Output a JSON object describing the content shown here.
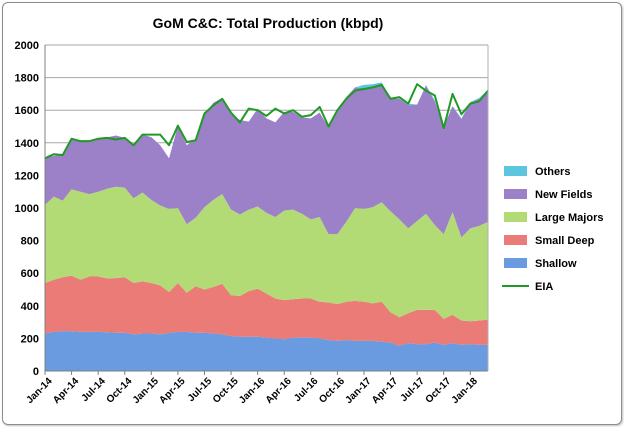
{
  "chart_data": {
    "type": "area",
    "title": "GoM C&C: Total Production (kbpd)",
    "ylim": [
      0,
      2000
    ],
    "yticks": [
      0,
      200,
      400,
      600,
      800,
      1000,
      1200,
      1400,
      1600,
      1800,
      2000
    ],
    "grid": "horizontal",
    "legend_position": "right",
    "stacked": true,
    "x": [
      "Jan-14",
      "Feb-14",
      "Mar-14",
      "Apr-14",
      "May-14",
      "Jun-14",
      "Jul-14",
      "Aug-14",
      "Sep-14",
      "Oct-14",
      "Nov-14",
      "Dec-14",
      "Jan-15",
      "Feb-15",
      "Mar-15",
      "Apr-15",
      "May-15",
      "Jun-15",
      "Jul-15",
      "Aug-15",
      "Sep-15",
      "Oct-15",
      "Nov-15",
      "Dec-15",
      "Jan-16",
      "Feb-16",
      "Mar-16",
      "Apr-16",
      "May-16",
      "Jun-16",
      "Jul-16",
      "Aug-16",
      "Sep-16",
      "Oct-16",
      "Nov-16",
      "Dec-16",
      "Jan-17",
      "Feb-17",
      "Mar-17",
      "Apr-17",
      "May-17",
      "Jun-17",
      "Jul-17",
      "Aug-17",
      "Sep-17",
      "Oct-17",
      "Nov-17",
      "Dec-17",
      "Jan-18",
      "Feb-18",
      "Mar-18"
    ],
    "x_tick_labels": [
      "Jan-14",
      "Apr-14",
      "Jul-14",
      "Oct-14",
      "Jan-15",
      "Apr-15",
      "Jul-15",
      "Oct-15",
      "Jan-16",
      "Apr-16",
      "Jul-16",
      "Oct-16",
      "Jan-17",
      "Apr-17",
      "Jul-17",
      "Oct-17",
      "Jan-18"
    ],
    "series": [
      {
        "name": "Shallow",
        "color": "#6a9be0",
        "values": [
          230,
          240,
          245,
          245,
          240,
          240,
          240,
          238,
          235,
          235,
          225,
          230,
          230,
          225,
          235,
          240,
          240,
          235,
          235,
          230,
          225,
          215,
          210,
          210,
          210,
          205,
          200,
          195,
          205,
          205,
          205,
          200,
          190,
          185,
          190,
          185,
          185,
          185,
          180,
          175,
          155,
          170,
          165,
          165,
          175,
          160,
          170,
          160,
          165,
          160,
          160
        ]
      },
      {
        "name": "Small Deep",
        "color": "#ea7b77",
        "values": [
          310,
          320,
          330,
          340,
          320,
          340,
          340,
          330,
          335,
          340,
          315,
          320,
          310,
          300,
          250,
          300,
          240,
          285,
          265,
          285,
          310,
          250,
          250,
          280,
          295,
          270,
          245,
          240,
          235,
          240,
          240,
          225,
          230,
          225,
          235,
          245,
          240,
          230,
          245,
          185,
          175,
          185,
          210,
          210,
          200,
          160,
          175,
          150,
          140,
          150,
          155
        ]
      },
      {
        "name": "Large Majors",
        "color": "#b3db75",
        "values": [
          480,
          510,
          470,
          530,
          540,
          505,
          520,
          550,
          560,
          550,
          520,
          545,
          510,
          490,
          510,
          460,
          420,
          420,
          505,
          535,
          550,
          525,
          500,
          500,
          505,
          495,
          500,
          550,
          550,
          520,
          485,
          520,
          420,
          430,
          490,
          570,
          570,
          590,
          610,
          620,
          600,
          520,
          545,
          590,
          520,
          520,
          630,
          510,
          570,
          580,
          600
        ]
      },
      {
        "name": "New Fields",
        "color": "#9c80c8",
        "values": [
          290,
          250,
          285,
          310,
          305,
          320,
          325,
          315,
          315,
          305,
          325,
          355,
          385,
          370,
          310,
          505,
          485,
          485,
          570,
          595,
          590,
          585,
          580,
          540,
          600,
          580,
          580,
          605,
          600,
          590,
          620,
          640,
          655,
          750,
          765,
          740,
          740,
          740,
          720,
          690,
          740,
          755,
          715,
          785,
          760,
          660,
          650,
          725,
          770,
          780,
          800
        ]
      },
      {
        "name": "Others",
        "color": "#5ec5df",
        "values": [
          0,
          0,
          0,
          0,
          0,
          0,
          0,
          0,
          0,
          0,
          0,
          0,
          0,
          0,
          0,
          0,
          0,
          0,
          0,
          0,
          0,
          0,
          0,
          0,
          0,
          0,
          0,
          0,
          0,
          0,
          0,
          0,
          0,
          0,
          0,
          0,
          20,
          15,
          15,
          5,
          0,
          10,
          0,
          5,
          5,
          0,
          0,
          5,
          5,
          5,
          10
        ]
      },
      {
        "name": "EIA",
        "type": "line",
        "color": "#1f9a24",
        "values": [
          1305,
          1330,
          1325,
          1425,
          1410,
          1410,
          1425,
          1430,
          1420,
          1430,
          1385,
          1450,
          1450,
          1450,
          1385,
          1505,
          1405,
          1415,
          1580,
          1630,
          1670,
          1585,
          1525,
          1610,
          1600,
          1565,
          1610,
          1580,
          1600,
          1560,
          1570,
          1620,
          1500,
          1600,
          1670,
          1720,
          1730,
          1740,
          1755,
          1670,
          1680,
          1640,
          1760,
          1720,
          1690,
          1490,
          1700,
          1575,
          1640,
          1655,
          1720
        ]
      }
    ],
    "legend": [
      "Others",
      "New Fields",
      "Large Majors",
      "Small Deep",
      "Shallow",
      "EIA"
    ]
  }
}
